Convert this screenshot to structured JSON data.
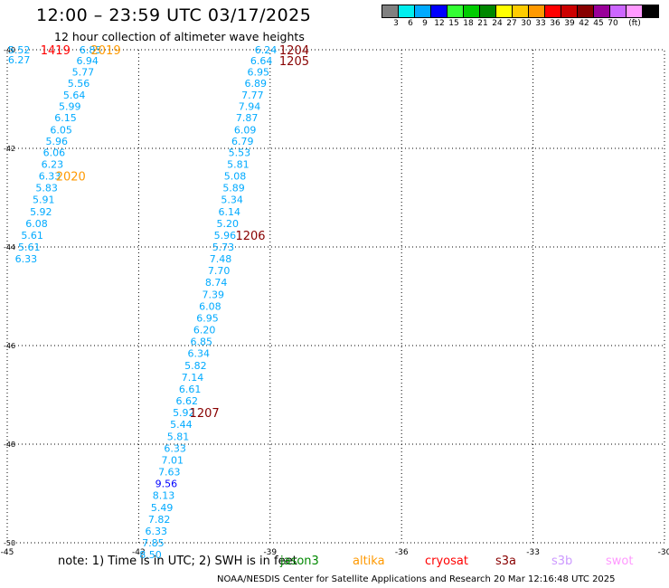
{
  "title": "12:00 – 23:59 UTC 03/17/2025",
  "subtitle": "12 hour collection of altimeter wave heights",
  "legend": {
    "unit": "(ft)",
    "bins": [
      {
        "label": "3",
        "color": "#808080"
      },
      {
        "label": "6",
        "color": "#00eeee"
      },
      {
        "label": "9",
        "color": "#00aaff"
      },
      {
        "label": "12",
        "color": "#0000ff"
      },
      {
        "label": "15",
        "color": "#33ff33"
      },
      {
        "label": "18",
        "color": "#00cc00"
      },
      {
        "label": "21",
        "color": "#008800"
      },
      {
        "label": "24",
        "color": "#ffff00"
      },
      {
        "label": "27",
        "color": "#ffcc00"
      },
      {
        "label": "30",
        "color": "#ff9900"
      },
      {
        "label": "33",
        "color": "#ff0000"
      },
      {
        "label": "36",
        "color": "#cc0000"
      },
      {
        "label": "39",
        "color": "#880000"
      },
      {
        "label": "42",
        "color": "#990099"
      },
      {
        "label": "45",
        "color": "#cc66ff"
      },
      {
        "label": "70",
        "color": "#ff99ff"
      },
      {
        "label": "",
        "color": "#000000"
      }
    ]
  },
  "lat_labels": [
    "-40",
    "-42",
    "-44",
    "-46",
    "-48",
    "-50"
  ],
  "lon_labels": [
    "-45",
    "-42",
    "-39",
    "-36",
    "-33",
    "-30"
  ],
  "track_values": [
    {
      "lat": -40.0,
      "lon": -44.73,
      "v": "5.52",
      "c": "#00aaff"
    },
    {
      "lat": -40.2,
      "lon": -44.73,
      "v": "6.27",
      "c": "#00aaff"
    },
    {
      "lat": -40.0,
      "lon": -43.1,
      "v": "6.85",
      "c": "#00aaff"
    },
    {
      "lat": -40.22,
      "lon": -43.17,
      "v": "6.94",
      "c": "#00aaff"
    },
    {
      "lat": -40.45,
      "lon": -43.27,
      "v": "5.77",
      "c": "#00aaff"
    },
    {
      "lat": -40.68,
      "lon": -43.37,
      "v": "5.56",
      "c": "#00aaff"
    },
    {
      "lat": -40.92,
      "lon": -43.47,
      "v": "5.64",
      "c": "#00aaff"
    },
    {
      "lat": -41.15,
      "lon": -43.57,
      "v": "5.99",
      "c": "#00aaff"
    },
    {
      "lat": -41.38,
      "lon": -43.67,
      "v": "6.15",
      "c": "#00aaff"
    },
    {
      "lat": -41.62,
      "lon": -43.77,
      "v": "6.05",
      "c": "#00aaff"
    },
    {
      "lat": -41.85,
      "lon": -43.87,
      "v": "5.96",
      "c": "#00aaff"
    },
    {
      "lat": -42.08,
      "lon": -43.93,
      "v": "6.06",
      "c": "#00aaff"
    },
    {
      "lat": -42.32,
      "lon": -43.97,
      "v": "6.23",
      "c": "#00aaff"
    },
    {
      "lat": -42.56,
      "lon": -44.03,
      "v": "6.33",
      "c": "#00aaff"
    },
    {
      "lat": -42.8,
      "lon": -44.1,
      "v": "5.83",
      "c": "#00aaff"
    },
    {
      "lat": -43.04,
      "lon": -44.17,
      "v": "5.91",
      "c": "#00aaff"
    },
    {
      "lat": -43.28,
      "lon": -44.23,
      "v": "5.92",
      "c": "#00aaff"
    },
    {
      "lat": -43.52,
      "lon": -44.33,
      "v": "6.08",
      "c": "#00aaff"
    },
    {
      "lat": -43.76,
      "lon": -44.43,
      "v": "5.61",
      "c": "#00aaff"
    },
    {
      "lat": -44.0,
      "lon": -44.5,
      "v": "5.61",
      "c": "#00aaff"
    },
    {
      "lat": -44.24,
      "lon": -44.57,
      "v": "6.33",
      "c": "#00aaff"
    },
    {
      "lat": -40.0,
      "lon": -39.1,
      "v": "6.24",
      "c": "#00aaff"
    },
    {
      "lat": -40.22,
      "lon": -39.2,
      "v": "6.64",
      "c": "#00aaff"
    },
    {
      "lat": -40.45,
      "lon": -39.27,
      "v": "6.95",
      "c": "#00aaff"
    },
    {
      "lat": -40.68,
      "lon": -39.33,
      "v": "6.89",
      "c": "#00aaff"
    },
    {
      "lat": -40.92,
      "lon": -39.4,
      "v": "7.77",
      "c": "#00aaff"
    },
    {
      "lat": -41.15,
      "lon": -39.47,
      "v": "7.94",
      "c": "#00aaff"
    },
    {
      "lat": -41.38,
      "lon": -39.53,
      "v": "7.87",
      "c": "#00aaff"
    },
    {
      "lat": -41.62,
      "lon": -39.57,
      "v": "6.09",
      "c": "#00aaff"
    },
    {
      "lat": -41.85,
      "lon": -39.63,
      "v": "6.79",
      "c": "#00aaff"
    },
    {
      "lat": -42.08,
      "lon": -39.7,
      "v": "5.53",
      "c": "#00aaff"
    },
    {
      "lat": -42.32,
      "lon": -39.73,
      "v": "5.81",
      "c": "#00aaff"
    },
    {
      "lat": -42.56,
      "lon": -39.8,
      "v": "5.08",
      "c": "#00aaff"
    },
    {
      "lat": -42.8,
      "lon": -39.83,
      "v": "5.89",
      "c": "#00aaff"
    },
    {
      "lat": -43.04,
      "lon": -39.87,
      "v": "5.34",
      "c": "#00aaff"
    },
    {
      "lat": -43.28,
      "lon": -39.93,
      "v": "6.14",
      "c": "#00aaff"
    },
    {
      "lat": -43.52,
      "lon": -39.97,
      "v": "5.20",
      "c": "#00aaff"
    },
    {
      "lat": -43.76,
      "lon": -40.03,
      "v": "5.96",
      "c": "#00aaff"
    },
    {
      "lat": -44.0,
      "lon": -40.07,
      "v": "5.73",
      "c": "#00aaff"
    },
    {
      "lat": -44.24,
      "lon": -40.13,
      "v": "7.48",
      "c": "#00aaff"
    },
    {
      "lat": -44.48,
      "lon": -40.17,
      "v": "7.70",
      "c": "#00aaff"
    },
    {
      "lat": -44.72,
      "lon": -40.23,
      "v": "8.74",
      "c": "#00aaff"
    },
    {
      "lat": -44.96,
      "lon": -40.3,
      "v": "7.39",
      "c": "#00aaff"
    },
    {
      "lat": -45.2,
      "lon": -40.37,
      "v": "6.08",
      "c": "#00aaff"
    },
    {
      "lat": -45.44,
      "lon": -40.43,
      "v": "6.95",
      "c": "#00aaff"
    },
    {
      "lat": -45.68,
      "lon": -40.5,
      "v": "6.20",
      "c": "#00aaff"
    },
    {
      "lat": -45.92,
      "lon": -40.57,
      "v": "6.85",
      "c": "#00aaff"
    },
    {
      "lat": -46.16,
      "lon": -40.63,
      "v": "6.34",
      "c": "#00aaff"
    },
    {
      "lat": -46.4,
      "lon": -40.7,
      "v": "5.82",
      "c": "#00aaff"
    },
    {
      "lat": -46.64,
      "lon": -40.77,
      "v": "7.14",
      "c": "#00aaff"
    },
    {
      "lat": -46.88,
      "lon": -40.83,
      "v": "6.61",
      "c": "#00aaff"
    },
    {
      "lat": -47.12,
      "lon": -40.9,
      "v": "6.62",
      "c": "#00aaff"
    },
    {
      "lat": -47.36,
      "lon": -40.97,
      "v": "5.92",
      "c": "#00aaff"
    },
    {
      "lat": -47.6,
      "lon": -41.03,
      "v": "5.44",
      "c": "#00aaff"
    },
    {
      "lat": -47.84,
      "lon": -41.1,
      "v": "5.81",
      "c": "#00aaff"
    },
    {
      "lat": -48.08,
      "lon": -41.17,
      "v": "6.33",
      "c": "#00aaff"
    },
    {
      "lat": -48.32,
      "lon": -41.23,
      "v": "7.01",
      "c": "#00aaff"
    },
    {
      "lat": -48.56,
      "lon": -41.3,
      "v": "7.63",
      "c": "#00aaff"
    },
    {
      "lat": -48.8,
      "lon": -41.37,
      "v": "9.56",
      "c": "#0000ff"
    },
    {
      "lat": -49.04,
      "lon": -41.43,
      "v": "8.13",
      "c": "#00aaff"
    },
    {
      "lat": -49.28,
      "lon": -41.47,
      "v": "5.49",
      "c": "#00aaff"
    },
    {
      "lat": -49.52,
      "lon": -41.53,
      "v": "7.82",
      "c": "#00aaff"
    },
    {
      "lat": -49.76,
      "lon": -41.6,
      "v": "6.33",
      "c": "#00aaff"
    },
    {
      "lat": -50.0,
      "lon": -41.67,
      "v": "7.85",
      "c": "#00aaff"
    },
    {
      "lat": -50.24,
      "lon": -41.73,
      "v": "8.50",
      "c": "#00aaff"
    }
  ],
  "time_labels": [
    {
      "lat": -40.0,
      "lon": -43.9,
      "t": "1419",
      "c": "#ff0000"
    },
    {
      "lat": -40.0,
      "lon": -42.75,
      "t": "2019",
      "c": "#ff9900"
    },
    {
      "lat": -42.56,
      "lon": -43.55,
      "t": "2020",
      "c": "#ff9900"
    },
    {
      "lat": -40.0,
      "lon": -38.45,
      "t": "1204",
      "c": "#880000"
    },
    {
      "lat": -40.22,
      "lon": -38.45,
      "t": "1205",
      "c": "#880000"
    },
    {
      "lat": -43.76,
      "lon": -39.45,
      "t": "1206",
      "c": "#880000"
    },
    {
      "lat": -47.36,
      "lon": -40.5,
      "t": "1207",
      "c": "#880000"
    }
  ],
  "footnote": "note:  1) Time is in UTC;  2) SWH is in feet",
  "satellites": [
    {
      "name": "jason3",
      "color": "#008800"
    },
    {
      "name": "altika",
      "color": "#ff9900"
    },
    {
      "name": "cryosat",
      "color": "#ff0000"
    },
    {
      "name": "s3a",
      "color": "#880000"
    },
    {
      "name": "s3b",
      "color": "#cc99ff"
    },
    {
      "name": "swot",
      "color": "#ff99ff"
    }
  ],
  "credit": "NOAA/NESDIS Center for Satellite Applications and Research    20 Mar 12:16:48 UTC 2025"
}
